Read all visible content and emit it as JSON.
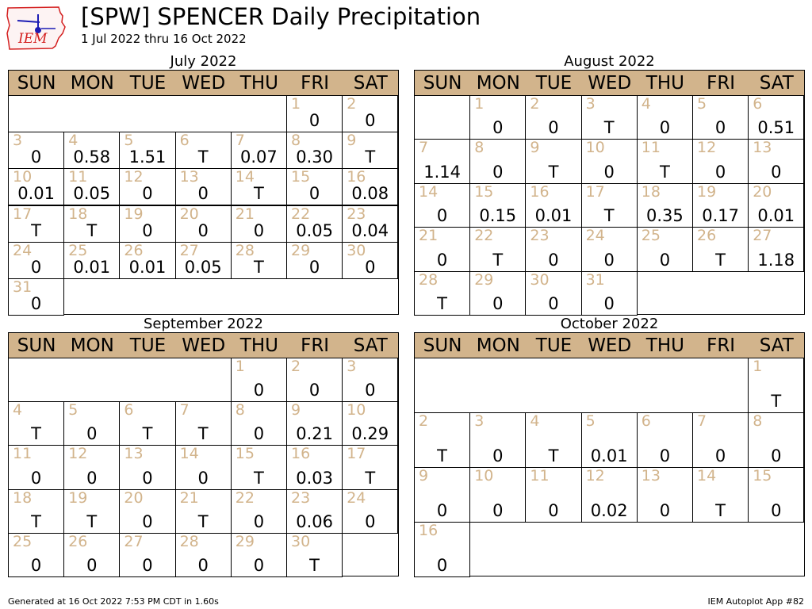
{
  "header": {
    "logo_text": "IEM",
    "title": "[SPW] SPENCER Daily Precipitation",
    "subtitle": "1 Jul 2022 thru 16 Oct 2022"
  },
  "footer": {
    "left": "Generated at 16 Oct 2022 7:53 PM CDT in 1.60s",
    "right": "IEM Autoplot App #82"
  },
  "colors": {
    "header_bg": "#d2b48c",
    "day_number": "#d2b48c",
    "logo_red": "#d42020",
    "logo_blue": "#1c1cb4"
  },
  "chart_data": {
    "type": "table",
    "weekday_labels": [
      "SUN",
      "MON",
      "TUE",
      "WED",
      "THU",
      "FRI",
      "SAT"
    ],
    "months": [
      {
        "title": "July 2022",
        "first_weekday": 5,
        "days": [
          "0",
          "0",
          "0",
          "0.58",
          "1.51",
          "T",
          "0.07",
          "0.30",
          "T",
          "0.01",
          "0.05",
          "0",
          "0",
          "T",
          "0",
          "0.08",
          "T",
          "T",
          "0",
          "0",
          "0",
          "0.05",
          "0.04",
          "0",
          "0.01",
          "0.01",
          "0.05",
          "T",
          "0",
          "0",
          "0"
        ]
      },
      {
        "title": "August 2022",
        "first_weekday": 1,
        "days": [
          "0",
          "0",
          "T",
          "0",
          "0",
          "0.51",
          "1.14",
          "0",
          "T",
          "0",
          "T",
          "0",
          "0",
          "0",
          "0.15",
          "0.01",
          "T",
          "0.35",
          "0.17",
          "0.01",
          "0",
          "T",
          "0",
          "0",
          "0",
          "T",
          "1.18",
          "T",
          "0",
          "0",
          "0"
        ]
      },
      {
        "title": "September 2022",
        "first_weekday": 4,
        "days": [
          "0",
          "0",
          "0",
          "T",
          "0",
          "T",
          "T",
          "0",
          "0.21",
          "0.29",
          "0",
          "0",
          "0",
          "0",
          "T",
          "0.03",
          "T",
          "T",
          "T",
          "0",
          "T",
          "0",
          "0.06",
          "0",
          "0",
          "0",
          "0",
          "0",
          "0",
          "T"
        ]
      },
      {
        "title": "October 2022",
        "first_weekday": 6,
        "days": [
          "T",
          "T",
          "0",
          "T",
          "0.01",
          "0",
          "0",
          "0",
          "0",
          "0",
          "0",
          "0.02",
          "0",
          "T",
          "0",
          "0"
        ]
      }
    ]
  }
}
